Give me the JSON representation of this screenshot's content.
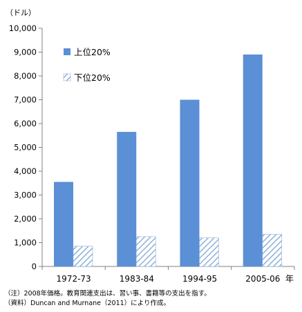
{
  "chart_data": {
    "type": "bar",
    "unit_label": "（ドル）",
    "categories": [
      "1972-73",
      "1983-84",
      "1994-95",
      "2005-06"
    ],
    "x_suffix": "年",
    "ylim": [
      0,
      10000
    ],
    "yticks": [
      0,
      1000,
      2000,
      3000,
      4000,
      5000,
      6000,
      7000,
      8000,
      9000,
      10000
    ],
    "ytick_labels": [
      "0",
      "1,000",
      "2,000",
      "3,000",
      "4,000",
      "5,000",
      "6,000",
      "7,000",
      "8,000",
      "9,000",
      "10,000"
    ],
    "grid": false,
    "legend_position": "top-left",
    "series": [
      {
        "name": "上位20%",
        "values": [
          3550,
          5650,
          7000,
          8900
        ],
        "color": "#5b8fd6",
        "fill": "solid"
      },
      {
        "name": "下位20%",
        "values": [
          850,
          1250,
          1200,
          1350
        ],
        "color": "#8eb0d9",
        "fill": "hatched"
      }
    ]
  },
  "notes": {
    "note1": "（注）2008年価格。教育関連支出は、習い事、書籍等の支出を指す。",
    "note2": "（資料）Duncan and Murnane（2011）により作成。"
  }
}
